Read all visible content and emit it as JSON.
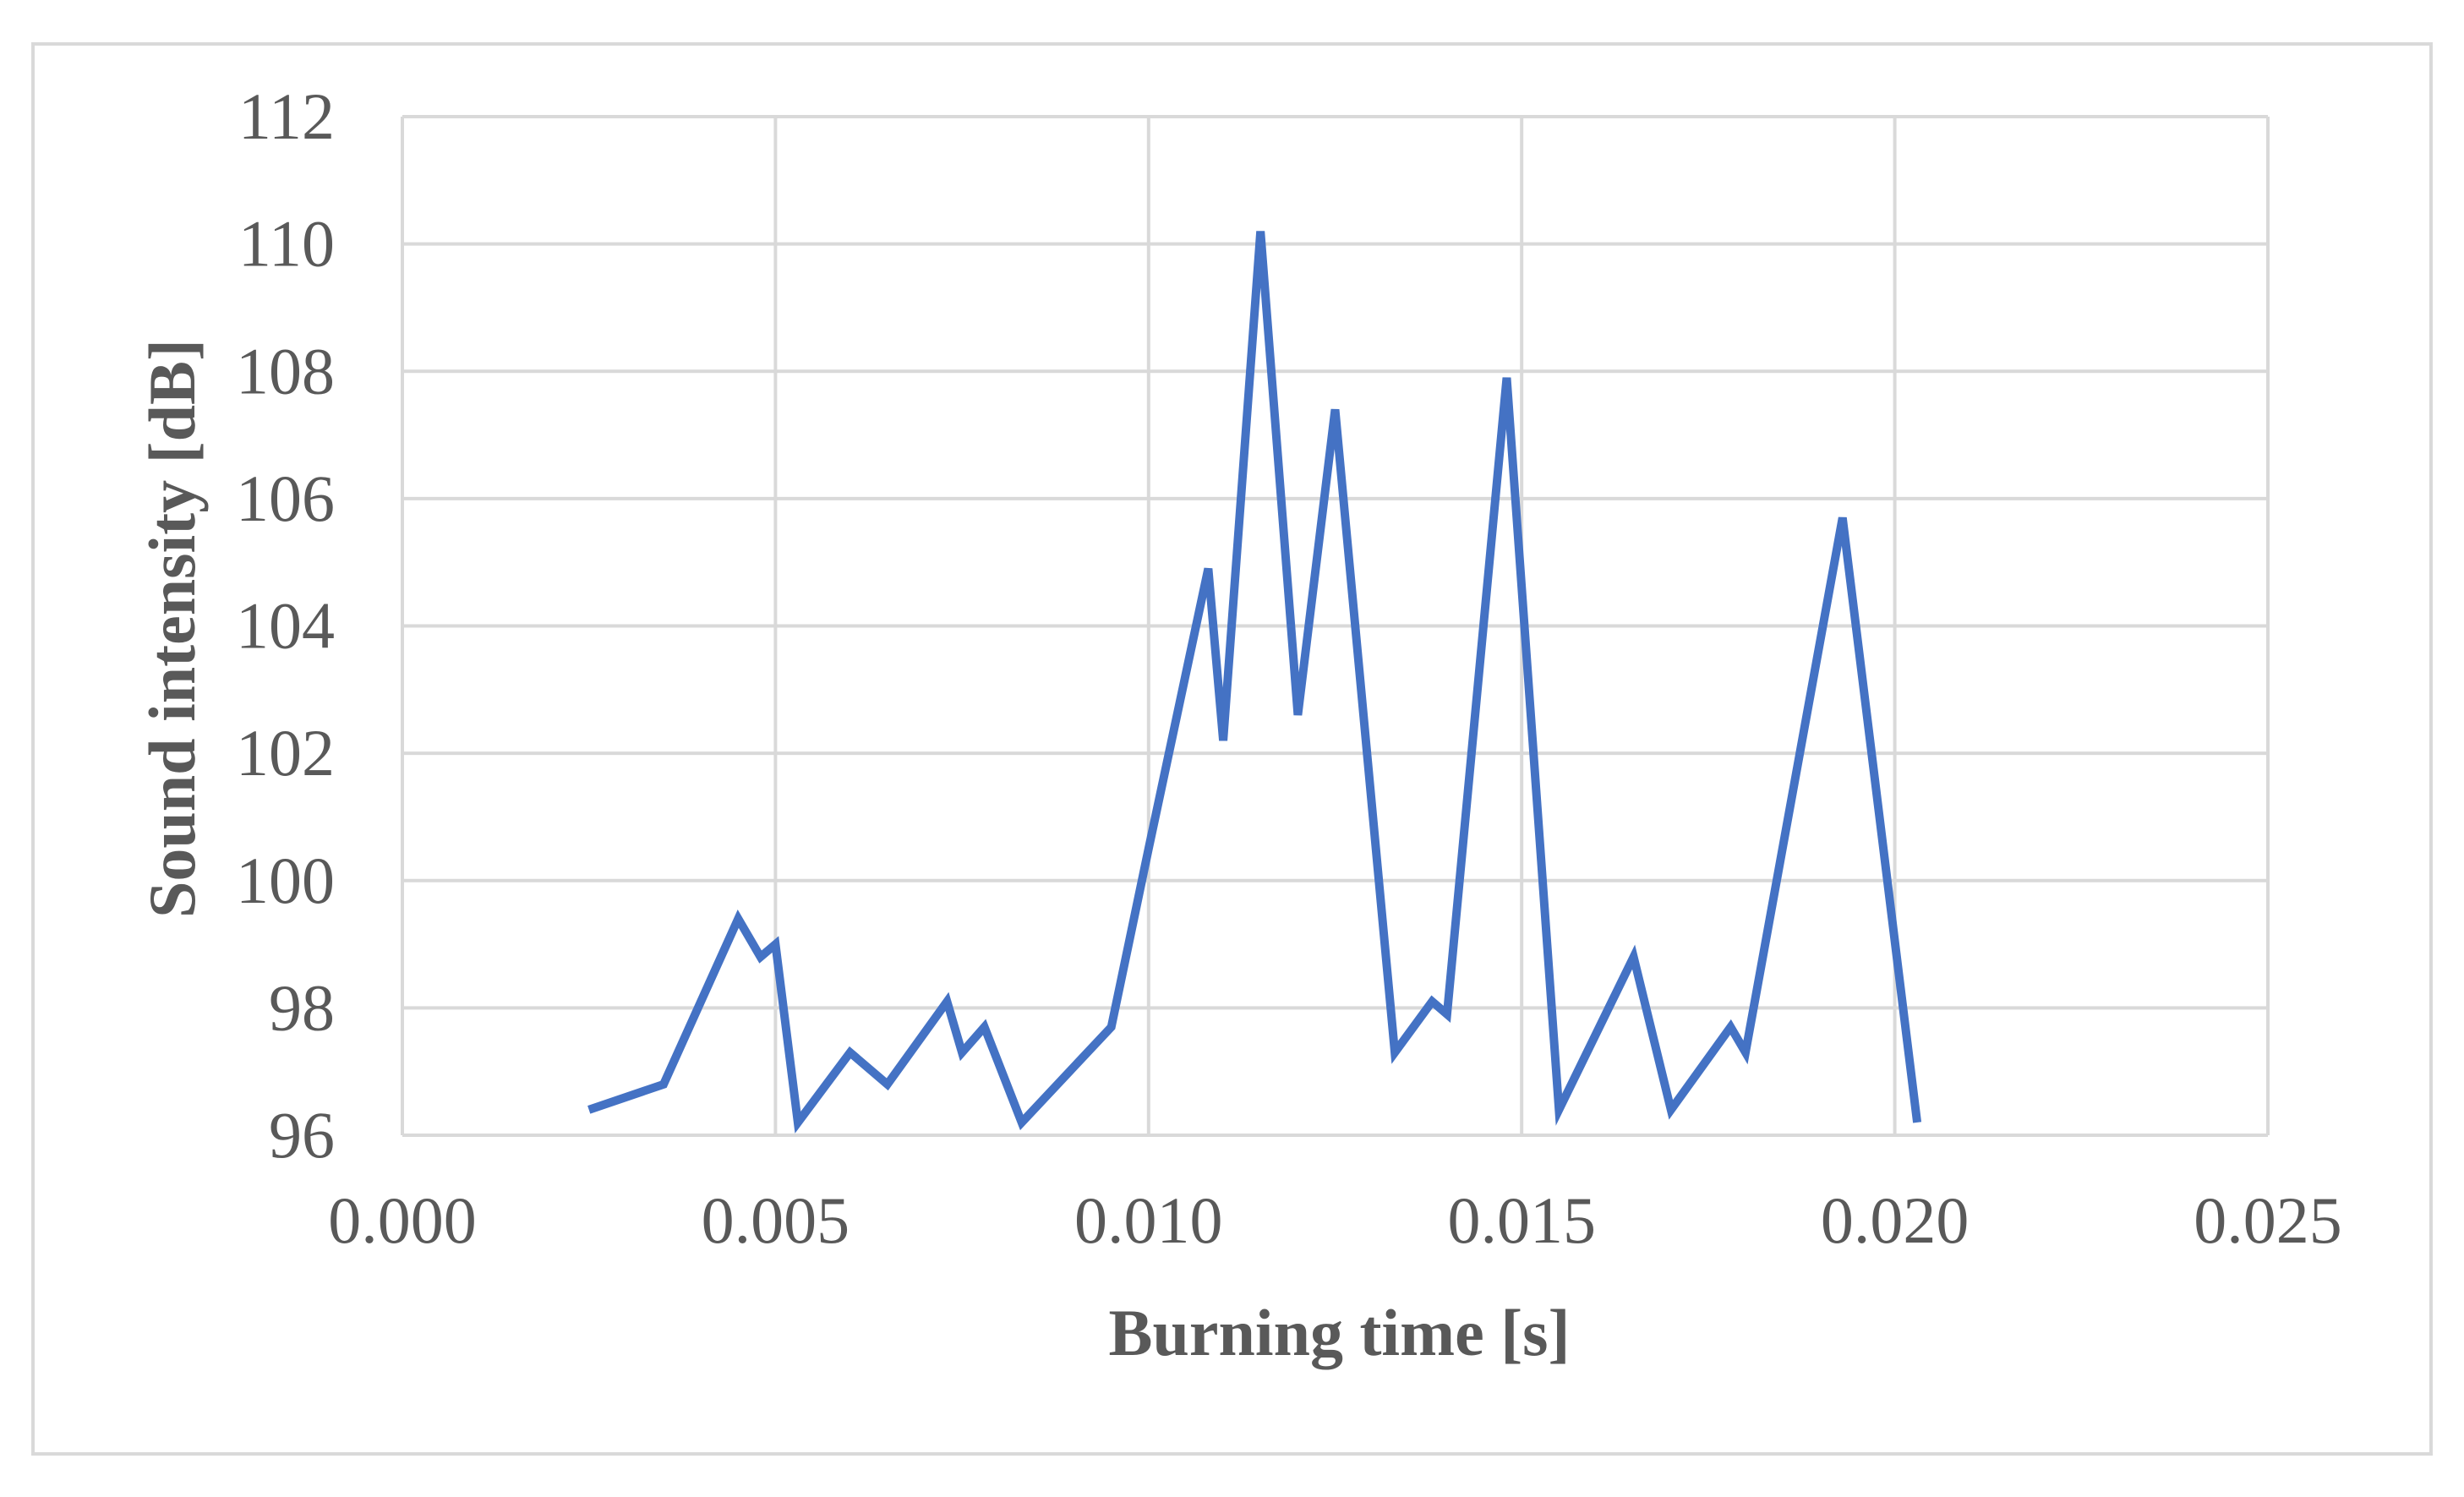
{
  "chart_data": {
    "type": "line",
    "xlabel": "Burning time [s]",
    "ylabel": "Sound intensity [dB]",
    "xlim": [
      0.0,
      0.025
    ],
    "ylim": [
      96,
      112
    ],
    "x_ticks": [
      "0.000",
      "0.005",
      "0.010",
      "0.015",
      "0.020",
      "0.025"
    ],
    "y_ticks": [
      "96",
      "98",
      "100",
      "102",
      "104",
      "106",
      "108",
      "110",
      "112"
    ],
    "grid": true,
    "line_color": "#4472c4",
    "gridline_color": "#d9d9d9",
    "series": [
      {
        "x": [
          0.0025,
          0.0035,
          0.0045,
          0.0048,
          0.005,
          0.0053,
          0.006,
          0.0065,
          0.0073,
          0.0075,
          0.0078,
          0.0083,
          0.0095,
          0.01,
          0.0108,
          0.011,
          0.0115,
          0.012,
          0.0125,
          0.0133,
          0.0138,
          0.014,
          0.0148,
          0.0155,
          0.0165,
          0.017,
          0.0178,
          0.018,
          0.0193,
          0.0203
        ],
        "y": [
          96.4,
          96.8,
          99.4,
          98.8,
          99.0,
          96.2,
          97.3,
          96.8,
          98.1,
          97.3,
          97.7,
          96.2,
          97.7,
          100.5,
          104.9,
          102.2,
          110.2,
          102.6,
          107.4,
          97.3,
          98.1,
          97.9,
          107.9,
          96.4,
          98.8,
          96.4,
          97.7,
          97.3,
          105.7,
          96.2
        ]
      }
    ]
  }
}
